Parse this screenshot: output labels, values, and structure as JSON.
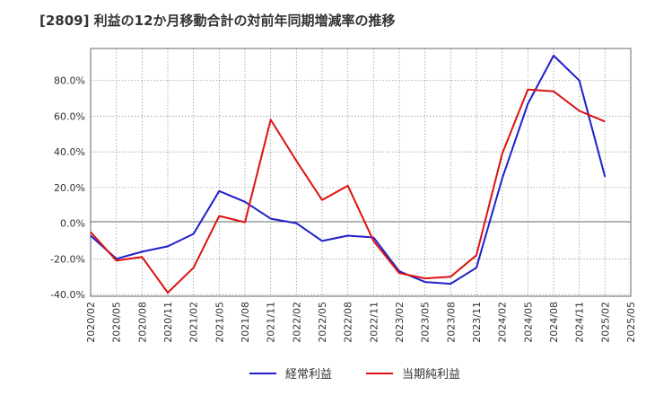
{
  "chart_data": {
    "type": "line",
    "title": "[2809]  利益の12か月移動合計の対前年同期増減率の推移",
    "x": [
      "2020/02",
      "2020/05",
      "2020/08",
      "2020/11",
      "2021/02",
      "2021/05",
      "2021/08",
      "2021/11",
      "2022/02",
      "2022/05",
      "2022/08",
      "2022/11",
      "2023/02",
      "2023/05",
      "2023/08",
      "2023/11",
      "2024/02",
      "2024/05",
      "2024/08",
      "2024/11",
      "2025/02",
      "2025/05"
    ],
    "ylim": [
      -41,
      98
    ],
    "yticks": [
      -40,
      -20,
      0,
      20,
      40,
      60,
      80
    ],
    "ytick_labels": [
      "-40.0%",
      "-20.0%",
      "0.0%",
      "20.0%",
      "40.0%",
      "60.0%",
      "80.0%"
    ],
    "grid": true,
    "legend_position": "bottom",
    "series": [
      {
        "name": "経常利益",
        "color": "#1f1fcc",
        "values": [
          -7,
          -20,
          -16,
          -13,
          -6,
          18,
          12,
          2.5,
          0,
          -10,
          -7,
          -8,
          -27,
          -33,
          -34,
          -25,
          25,
          67,
          94,
          80,
          26,
          null
        ]
      },
      {
        "name": "当期純利益",
        "color": "#dd1111",
        "values": [
          -5,
          -21,
          -19,
          -39,
          -25,
          4,
          0.5,
          58,
          35,
          13,
          21,
          -10,
          -28,
          -31,
          -30,
          -18,
          39,
          75,
          74,
          63,
          57,
          null
        ]
      }
    ]
  }
}
